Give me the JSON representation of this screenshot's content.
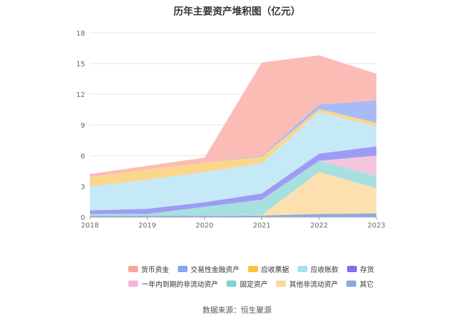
{
  "title": "历年主要资产堆积图（亿元）",
  "source": "数据来源：恒生聚源",
  "chart_data": {
    "type": "area",
    "stacked": true,
    "x": [
      "2018",
      "2019",
      "2020",
      "2021",
      "2022",
      "2023"
    ],
    "ylim": [
      0,
      18
    ],
    "yticks": [
      0,
      3,
      6,
      9,
      12,
      15,
      18
    ],
    "grid": true,
    "legend_position": "bottom",
    "series": [
      {
        "name": "其它",
        "color": "#8faadc",
        "values": [
          0.1,
          0.1,
          0.1,
          0.15,
          0.3,
          0.35
        ]
      },
      {
        "name": "其他非流动资产",
        "color": "#fde0b0",
        "values": [
          0.0,
          0.0,
          0.0,
          0.05,
          4.1,
          2.45
        ]
      },
      {
        "name": "固定资产",
        "color": "#a8e0e0",
        "values": [
          0.2,
          0.2,
          0.9,
          1.5,
          1.1,
          1.2
        ]
      },
      {
        "name": "一年内到期的非流动资产",
        "color": "#f3c6de",
        "values": [
          0.0,
          0.0,
          0.0,
          0.0,
          0.0,
          2.0
        ]
      },
      {
        "name": "存货",
        "color": "#9e9cf2",
        "values": [
          0.35,
          0.5,
          0.45,
          0.6,
          0.7,
          0.9
        ]
      },
      {
        "name": "应收账款",
        "color": "#c6e9f8",
        "values": [
          2.35,
          2.85,
          2.95,
          2.95,
          4.05,
          1.95
        ]
      },
      {
        "name": "应收票据",
        "color": "#fcd68a",
        "values": [
          0.9,
          1.0,
          0.9,
          0.65,
          0.3,
          0.35
        ]
      },
      {
        "name": "交易性金融资产",
        "color": "#a7bcf7",
        "values": [
          0.0,
          0.0,
          0.0,
          0.1,
          0.45,
          2.2
        ]
      },
      {
        "name": "货币资金",
        "color": "#fcbcb6",
        "values": [
          0.3,
          0.35,
          0.5,
          9.1,
          4.8,
          2.6
        ]
      }
    ]
  },
  "legend": {
    "row1": [
      {
        "name": "货币资金",
        "color": "#f8a59c"
      },
      {
        "name": "交易性金融资产",
        "color": "#8aa4f2"
      },
      {
        "name": "应收票据",
        "color": "#fbc23b"
      },
      {
        "name": "应收账款",
        "color": "#a6def6"
      },
      {
        "name": "存货",
        "color": "#7b72ec"
      }
    ],
    "row2": [
      {
        "name": "一年内到期的非流动资产",
        "color": "#efb6d6"
      },
      {
        "name": "固定资产",
        "color": "#7fd3d4"
      },
      {
        "name": "其他非流动资产",
        "color": "#fcd89e"
      },
      {
        "name": "其它",
        "color": "#8fa9dc"
      }
    ]
  }
}
